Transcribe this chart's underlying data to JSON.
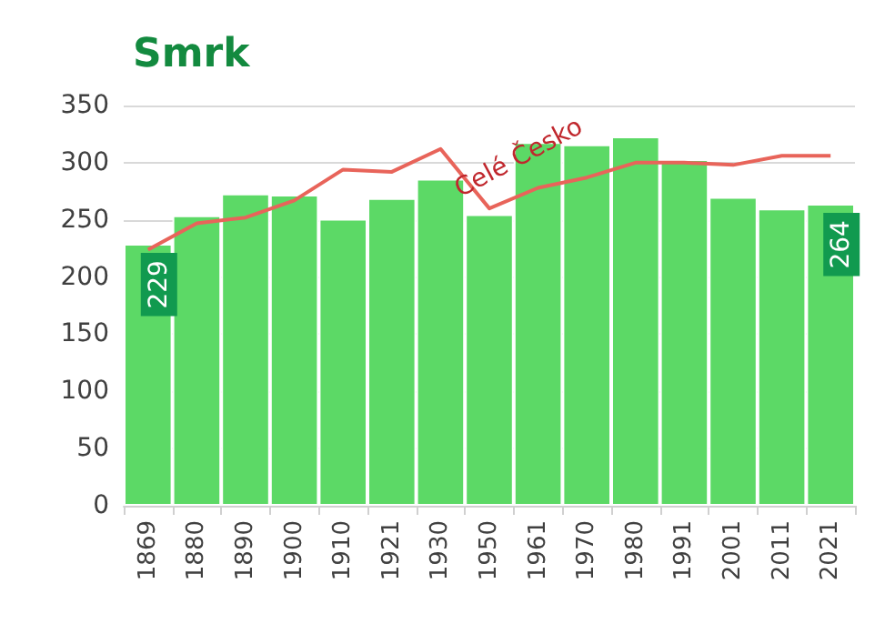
{
  "chart_data": {
    "type": "bar",
    "title": "Smrk",
    "categories": [
      "1869",
      "1880",
      "1890",
      "1900",
      "1910",
      "1921",
      "1930",
      "1950",
      "1961",
      "1970",
      "1980",
      "1991",
      "2001",
      "2011",
      "2021"
    ],
    "series": [
      {
        "color": "#5cd966",
        "values": [
          229,
          254,
          273,
          272,
          251,
          269,
          286,
          255,
          318,
          316,
          323,
          303,
          270,
          260,
          264
        ],
        "value_labels": [
          "229",
          null,
          null,
          null,
          null,
          null,
          null,
          null,
          null,
          null,
          null,
          null,
          null,
          null,
          "264"
        ]
      },
      {
        "type": "line",
        "name": "Celé Česko",
        "color": "#e8645a",
        "values": [
          224,
          247,
          252,
          267,
          294,
          292,
          312,
          260,
          278,
          287,
          300,
          300,
          298,
          306,
          306
        ]
      }
    ],
    "ylim": [
      0,
      350
    ],
    "yticks": [
      0,
      50,
      100,
      150,
      200,
      250,
      300,
      350
    ],
    "grid": "y",
    "marker": "none"
  }
}
